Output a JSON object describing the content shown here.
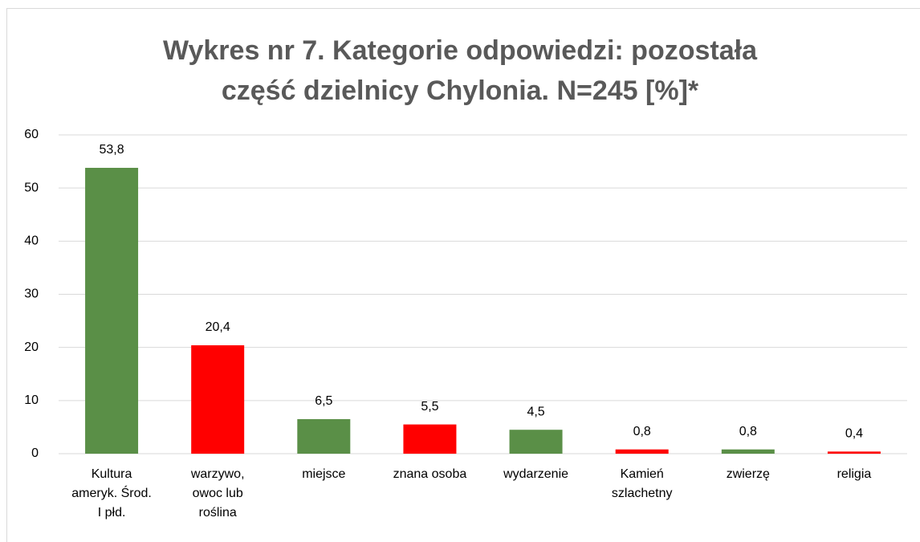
{
  "chart_data": {
    "type": "bar",
    "title": "Wykres nr 7. Kategorie odpowiedzi: pozostała część dzielnicy Chylonia. N=245 [%]*",
    "categories": [
      "Kultura ameryk. Środ. I płd.",
      "warzywo, owoc lub roślina",
      "miejsce",
      "znana osoba",
      "wydarzenie",
      "Kamień szlachetny",
      "zwierzę",
      "religia"
    ],
    "values": [
      53.8,
      20.4,
      6.5,
      5.5,
      4.5,
      0.8,
      0.8,
      0.4
    ],
    "value_labels": [
      "53,8",
      "20,4",
      "6,5",
      "5,5",
      "4,5",
      "0,8",
      "0,8",
      "0,4"
    ],
    "colors": [
      "#5a8f47",
      "#ff0000",
      "#5a8f47",
      "#ff0000",
      "#5a8f47",
      "#ff0000",
      "#5a8f47",
      "#ff0000"
    ],
    "ylim": [
      0,
      60
    ],
    "yticks": [
      0,
      10,
      20,
      30,
      40,
      50,
      60
    ],
    "grid": true
  }
}
